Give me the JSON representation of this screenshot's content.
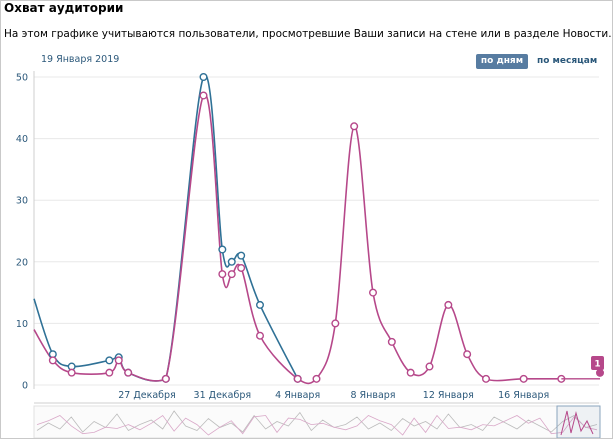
{
  "header": {
    "title": "Охват аудитории",
    "description": "На этом графике учитываются пользователи, просмотревшие Ваши записи на стене или в разделе Новости.",
    "selected_date": "19 Января 2019"
  },
  "tabs": {
    "days": "по дням",
    "months": "по месяцам",
    "active": "days"
  },
  "colors": {
    "series_blue": "#2f7196",
    "series_pink": "#b6488a",
    "axis_text": "#2b587a",
    "grid": "#e8e8e8",
    "tab_active_bg": "#577ca1",
    "navigator_pink": "#d9a8c8",
    "navigator_gray": "#bcbcbc"
  },
  "chart_data": {
    "type": "line",
    "ylim": [
      0,
      50
    ],
    "yticks": [
      0,
      10,
      20,
      30,
      40,
      50
    ],
    "xrange": [
      21,
      51
    ],
    "xticks": [
      {
        "x": 27,
        "label": "27 Декабря"
      },
      {
        "x": 31,
        "label": "31 Декабря"
      },
      {
        "x": 35,
        "label": "4 Января"
      },
      {
        "x": 39,
        "label": "8 Января"
      },
      {
        "x": 43,
        "label": "12 Января"
      },
      {
        "x": 47,
        "label": "16 Января"
      }
    ],
    "series": [
      {
        "color_key": "series_blue",
        "points": [
          [
            21,
            14
          ],
          [
            22,
            5
          ],
          [
            23,
            3
          ],
          [
            25,
            4
          ],
          [
            25.5,
            4.5
          ],
          [
            26,
            2
          ],
          [
            28,
            1
          ],
          [
            30,
            50
          ],
          [
            31,
            22
          ],
          [
            31.5,
            20
          ],
          [
            32,
            21
          ],
          [
            33,
            13
          ],
          [
            35,
            1
          ]
        ]
      },
      {
        "color_key": "series_pink",
        "points": [
          [
            21,
            9
          ],
          [
            22,
            4
          ],
          [
            23,
            2
          ],
          [
            25,
            2
          ],
          [
            25.5,
            4
          ],
          [
            26,
            2
          ],
          [
            28,
            1
          ],
          [
            30,
            47
          ],
          [
            31,
            18
          ],
          [
            31.5,
            18
          ],
          [
            32,
            19
          ],
          [
            33,
            8
          ],
          [
            35,
            1
          ],
          [
            36,
            1
          ],
          [
            37,
            10
          ],
          [
            38,
            42
          ],
          [
            39,
            15
          ],
          [
            40,
            7
          ],
          [
            41,
            2
          ],
          [
            42,
            3
          ],
          [
            43,
            13
          ],
          [
            44,
            5
          ],
          [
            45,
            1
          ],
          [
            47,
            1
          ],
          [
            49,
            1
          ]
        ]
      }
    ],
    "badge": {
      "text": "1"
    }
  }
}
